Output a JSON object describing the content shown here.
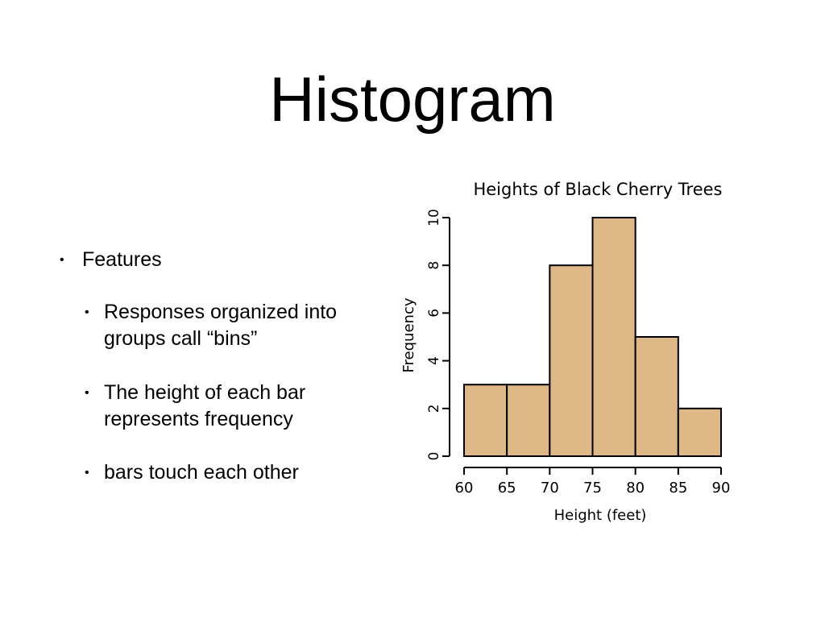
{
  "slide": {
    "title": "Histogram",
    "bullets": [
      {
        "text": "Features",
        "children": [
          "Responses organized into groups call “bins”",
          "The height of each bar represents frequency",
          "bars touch each other"
        ]
      }
    ]
  },
  "chart_data": {
    "type": "bar",
    "title": "Heights of Black Cherry Trees",
    "xlabel": "Height (feet)",
    "ylabel": "Frequency",
    "bins": [
      {
        "from": 60,
        "to": 65,
        "count": 3
      },
      {
        "from": 65,
        "to": 70,
        "count": 3
      },
      {
        "from": 70,
        "to": 75,
        "count": 8
      },
      {
        "from": 75,
        "to": 80,
        "count": 10
      },
      {
        "from": 80,
        "to": 85,
        "count": 5
      },
      {
        "from": 85,
        "to": 90,
        "count": 2
      }
    ],
    "xticks": [
      "60",
      "65",
      "70",
      "75",
      "80",
      "85",
      "90"
    ],
    "yticks": [
      "0",
      "2",
      "4",
      "6",
      "8",
      "10"
    ],
    "xlim": [
      60,
      90
    ],
    "ylim": [
      0,
      10
    ],
    "bar_color": "#deb887",
    "grid": false,
    "legend": "none"
  }
}
